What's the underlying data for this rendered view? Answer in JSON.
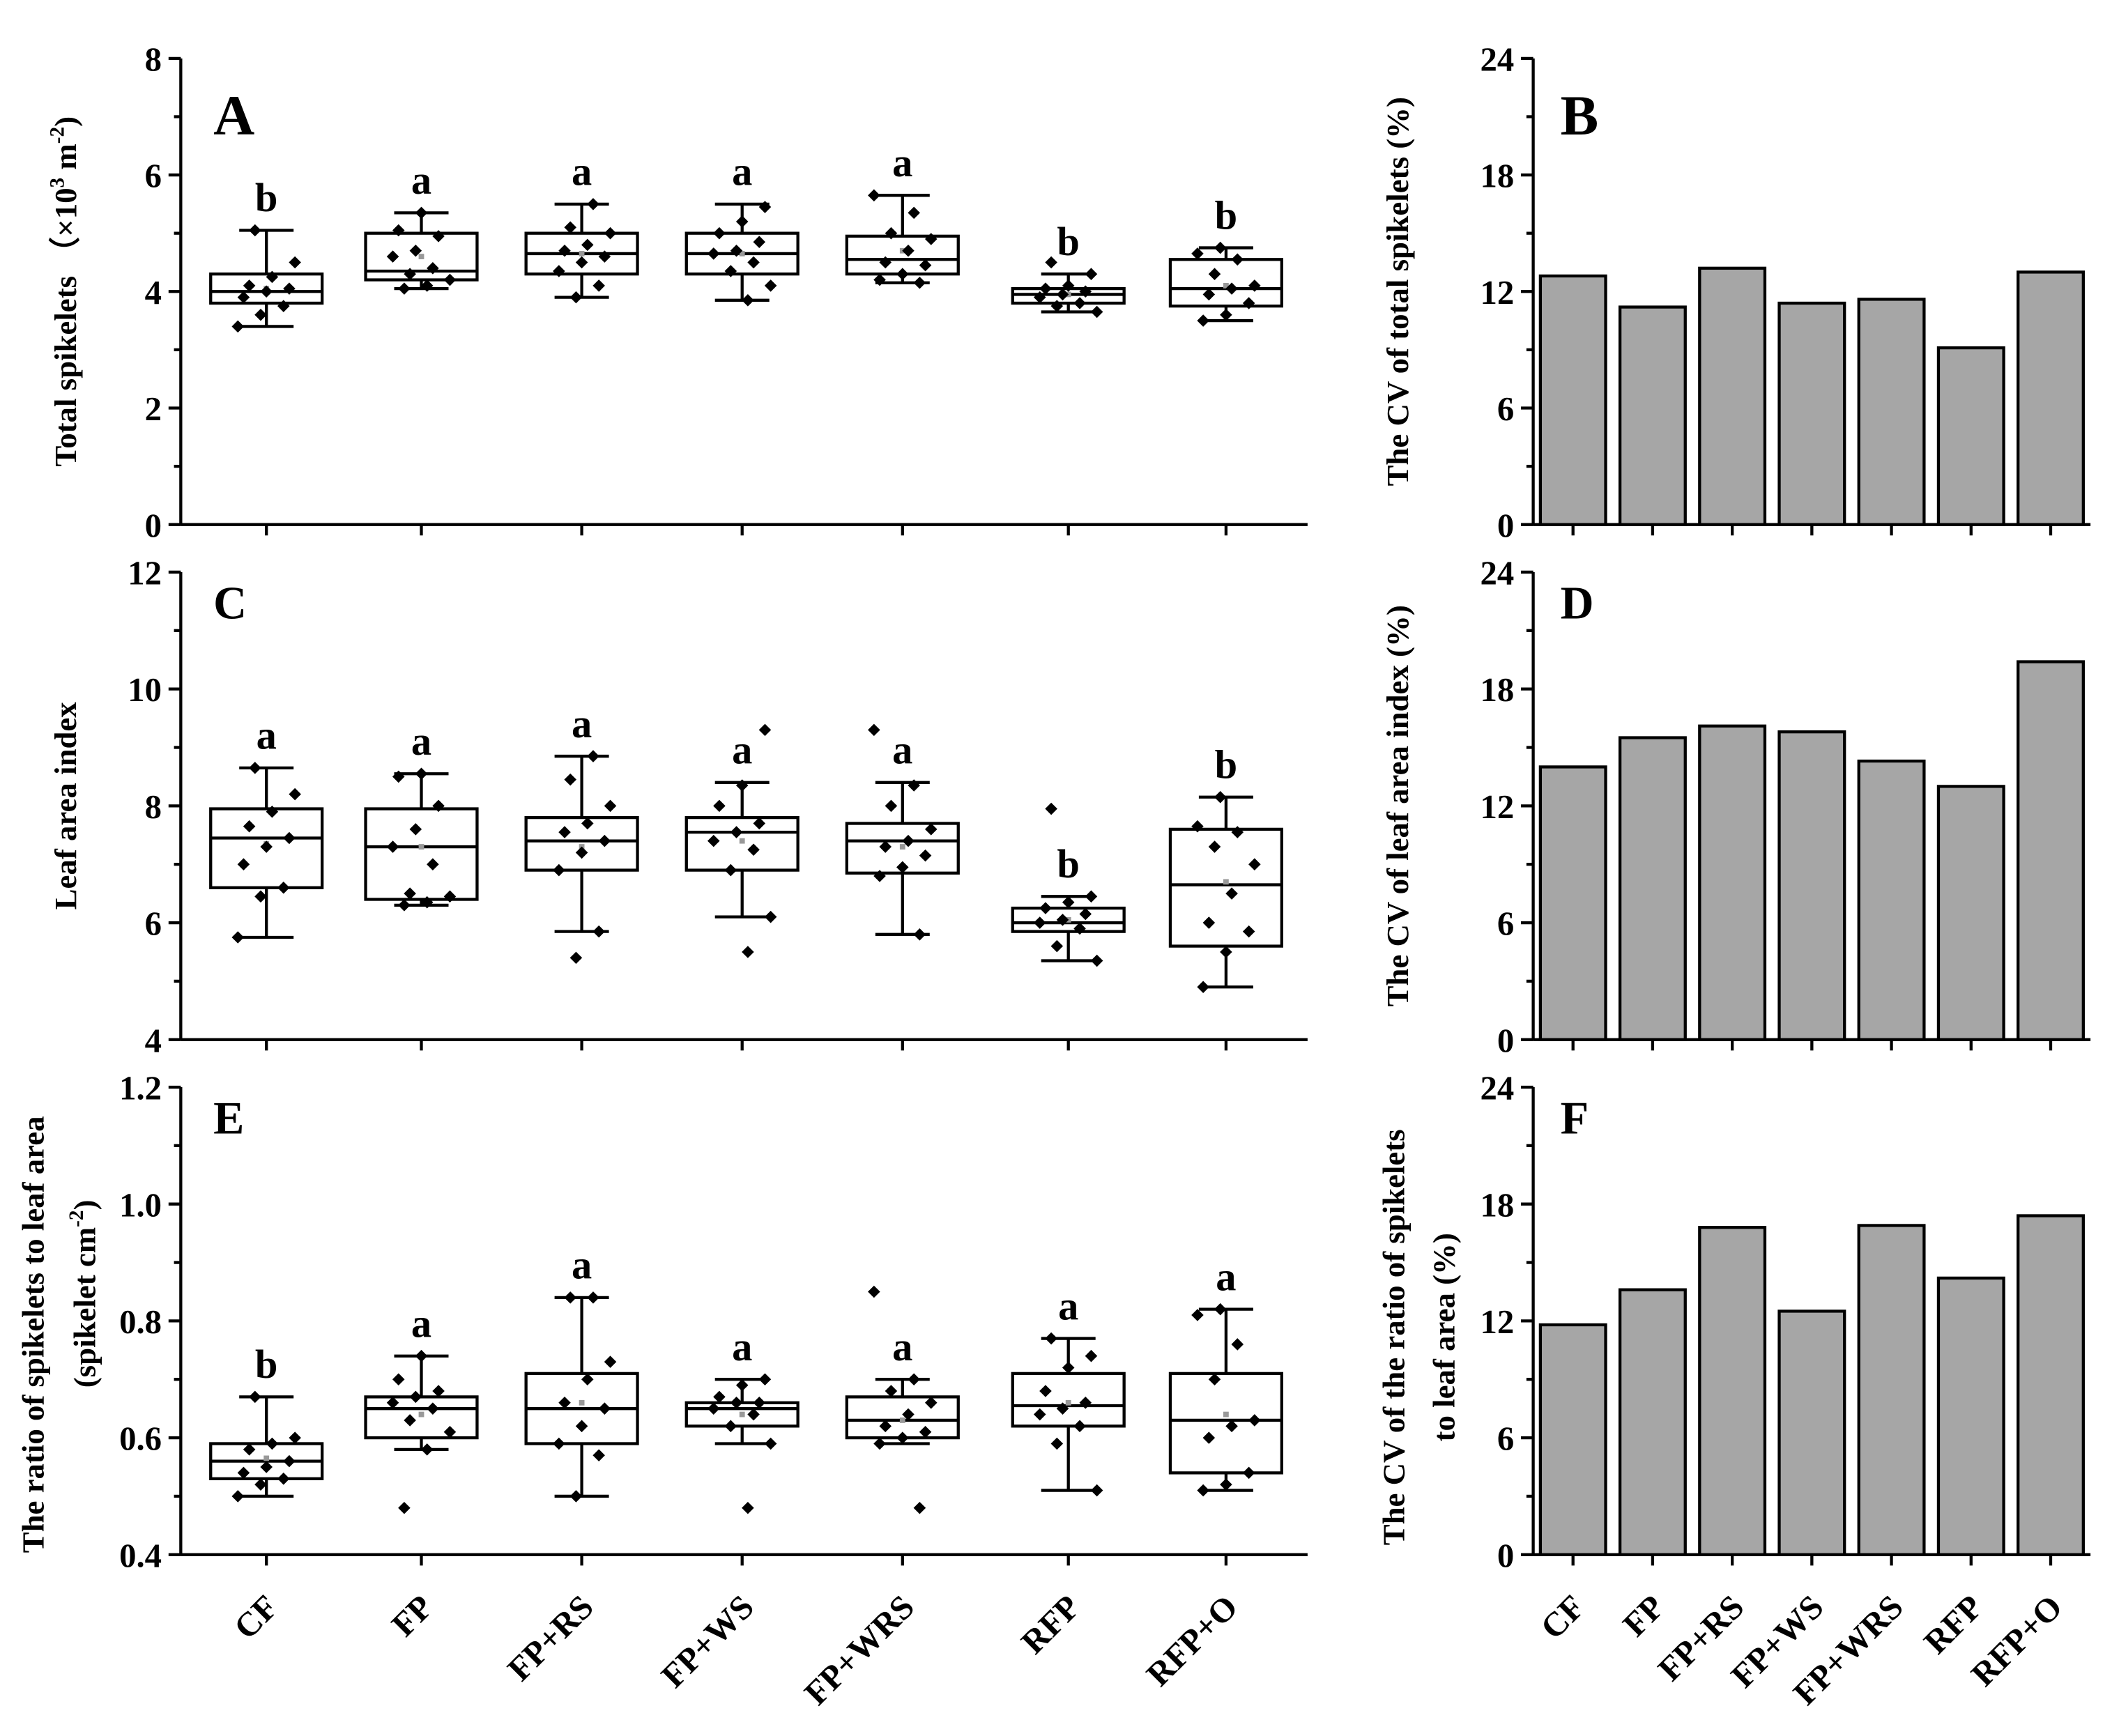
{
  "chart_data": [
    {
      "id": "A",
      "panel_letter": "A",
      "type": "box",
      "ylabel": "Total spikelets （×10",
      "ylabel_sup": "3",
      "ylabel_unit": " m",
      "ylabel_sup2": "-2",
      "ylabel_end": ")",
      "ylim": [
        0,
        8
      ],
      "yticks": [
        0,
        2,
        4,
        6,
        8
      ],
      "ytick_labels": [
        "0",
        "2",
        "4",
        "6",
        "8"
      ],
      "categories": [
        "CF",
        "FP",
        "FP+RS",
        "FP+WS",
        "FP+WRS",
        "RFP",
        "RFP+O"
      ],
      "boxes": [
        {
          "whisker_low": 3.4,
          "q1": 3.8,
          "median": 4.0,
          "q3": 4.3,
          "whisker_high": 5.05,
          "mean": 4.05,
          "points": [
            3.4,
            3.6,
            3.75,
            3.9,
            4.0,
            4.05,
            4.1,
            4.25,
            4.5,
            5.05
          ]
        },
        {
          "whisker_low": 4.05,
          "q1": 4.2,
          "median": 4.35,
          "q3": 5.0,
          "whisker_high": 5.35,
          "mean": 4.6,
          "points": [
            4.05,
            4.1,
            4.2,
            4.3,
            4.4,
            4.6,
            4.7,
            4.95,
            5.05,
            5.35
          ]
        },
        {
          "whisker_low": 3.9,
          "q1": 4.3,
          "median": 4.65,
          "q3": 5.0,
          "whisker_high": 5.5,
          "mean": 4.65,
          "points": [
            3.9,
            4.1,
            4.35,
            4.5,
            4.6,
            4.7,
            4.8,
            5.0,
            5.1,
            5.5
          ]
        },
        {
          "whisker_low": 3.85,
          "q1": 4.3,
          "median": 4.65,
          "q3": 5.0,
          "whisker_high": 5.5,
          "mean": 4.65,
          "points": [
            3.85,
            4.1,
            4.35,
            4.5,
            4.65,
            4.7,
            4.85,
            5.0,
            5.2,
            5.45
          ]
        },
        {
          "whisker_low": 4.15,
          "q1": 4.3,
          "median": 4.55,
          "q3": 4.95,
          "whisker_high": 5.65,
          "mean": 4.7,
          "points": [
            4.15,
            4.2,
            4.3,
            4.45,
            4.5,
            4.7,
            4.9,
            5.0,
            5.35,
            5.65
          ]
        },
        {
          "whisker_low": 3.65,
          "q1": 3.8,
          "median": 3.95,
          "q3": 4.05,
          "whisker_high": 4.3,
          "mean": 3.95,
          "points": [
            3.65,
            3.75,
            3.8,
            3.9,
            3.95,
            4.0,
            4.05,
            4.1,
            4.3,
            4.5
          ]
        },
        {
          "whisker_low": 3.5,
          "q1": 3.75,
          "median": 4.05,
          "q3": 4.55,
          "whisker_high": 4.75,
          "mean": 4.1,
          "points": [
            3.5,
            3.6,
            3.8,
            3.95,
            4.05,
            4.1,
            4.3,
            4.55,
            4.65,
            4.75
          ]
        }
      ],
      "letters": [
        "b",
        "a",
        "a",
        "a",
        "a",
        "b",
        "b"
      ]
    },
    {
      "id": "B",
      "panel_letter": "B",
      "type": "bar",
      "ylabel": "The CV of total spikelets (%)",
      "ylim": [
        0,
        24
      ],
      "yticks": [
        0,
        6,
        12,
        18,
        24
      ],
      "ytick_labels": [
        "0",
        "6",
        "12",
        "18",
        "24"
      ],
      "categories": [
        "CF",
        "FP",
        "FP+RS",
        "FP+WS",
        "FP+WRS",
        "RFP",
        "RFP+O"
      ],
      "values": [
        12.8,
        11.2,
        13.2,
        11.4,
        11.6,
        9.1,
        13.0
      ]
    },
    {
      "id": "C",
      "panel_letter": "C",
      "type": "box",
      "ylabel": "Leaf area index",
      "ylim": [
        4,
        12
      ],
      "yticks": [
        4,
        6,
        8,
        10,
        12
      ],
      "ytick_labels": [
        "4",
        "6",
        "8",
        "10",
        "12"
      ],
      "categories": [
        "CF",
        "FP",
        "FP+RS",
        "FP+WS",
        "FP+WRS",
        "RFP",
        "RFP+O"
      ],
      "boxes": [
        {
          "whisker_low": 5.75,
          "q1": 6.6,
          "median": 7.45,
          "q3": 7.95,
          "whisker_high": 8.65,
          "mean": 7.35,
          "points": [
            5.75,
            6.45,
            6.6,
            7.0,
            7.3,
            7.45,
            7.65,
            7.9,
            8.2,
            8.65
          ]
        },
        {
          "whisker_low": 6.3,
          "q1": 6.4,
          "median": 7.3,
          "q3": 7.95,
          "whisker_high": 8.55,
          "mean": 7.3,
          "points": [
            6.3,
            6.35,
            6.45,
            6.5,
            7.0,
            7.3,
            7.6,
            8.0,
            8.5,
            8.55
          ]
        },
        {
          "whisker_low": 5.85,
          "q1": 6.9,
          "median": 7.4,
          "q3": 7.8,
          "whisker_high": 8.85,
          "mean": 7.3,
          "points": [
            5.4,
            5.85,
            6.9,
            7.2,
            7.4,
            7.55,
            7.7,
            8.0,
            8.45,
            8.85
          ]
        },
        {
          "whisker_low": 6.1,
          "q1": 6.9,
          "median": 7.55,
          "q3": 7.8,
          "whisker_high": 8.4,
          "mean": 7.4,
          "points": [
            5.5,
            6.1,
            6.9,
            7.25,
            7.4,
            7.55,
            7.7,
            8.0,
            8.35,
            9.3
          ]
        },
        {
          "whisker_low": 5.8,
          "q1": 6.85,
          "median": 7.4,
          "q3": 7.7,
          "whisker_high": 8.4,
          "mean": 7.3,
          "points": [
            5.8,
            6.8,
            6.95,
            7.15,
            7.3,
            7.4,
            7.6,
            8.0,
            8.35,
            9.3
          ]
        },
        {
          "whisker_low": 5.35,
          "q1": 5.85,
          "median": 6.0,
          "q3": 6.25,
          "whisker_high": 6.45,
          "mean": 6.05,
          "points": [
            5.35,
            5.6,
            5.9,
            6.0,
            6.05,
            6.15,
            6.25,
            6.35,
            6.45,
            7.95
          ]
        },
        {
          "whisker_low": 4.9,
          "q1": 5.6,
          "median": 6.65,
          "q3": 7.6,
          "whisker_high": 8.15,
          "mean": 6.7,
          "points": [
            4.9,
            5.5,
            5.85,
            6.0,
            6.5,
            7.0,
            7.3,
            7.55,
            7.65,
            8.15
          ]
        }
      ],
      "letters": [
        "a",
        "a",
        "a",
        "a",
        "a",
        "b",
        "b"
      ]
    },
    {
      "id": "D",
      "panel_letter": "D",
      "type": "bar",
      "ylabel": "The CV of leaf area index (%)",
      "ylim": [
        0,
        24
      ],
      "yticks": [
        0,
        6,
        12,
        18,
        24
      ],
      "ytick_labels": [
        "0",
        "6",
        "12",
        "18",
        "24"
      ],
      "categories": [
        "CF",
        "FP",
        "FP+RS",
        "FP+WS",
        "FP+WRS",
        "RFP",
        "RFP+O"
      ],
      "values": [
        14.0,
        15.5,
        16.1,
        15.8,
        14.3,
        13.0,
        19.4
      ]
    },
    {
      "id": "E",
      "panel_letter": "E",
      "type": "box",
      "ylabel": "The ratio of spikelets to leaf area",
      "ylabel2": "(spikelet cm",
      "ylabel2_sup": "-2",
      "ylabel2_end": ")",
      "ylim": [
        0.4,
        1.2
      ],
      "yticks": [
        0.4,
        0.6,
        0.8,
        1.0,
        1.2
      ],
      "ytick_labels": [
        "0.4",
        "0.6",
        "0.8",
        "1.0",
        "1.2"
      ],
      "categories": [
        "CF",
        "FP",
        "FP+RS",
        "FP+WS",
        "FP+WRS",
        "RFP",
        "RFP+O"
      ],
      "boxes": [
        {
          "whisker_low": 0.5,
          "q1": 0.53,
          "median": 0.56,
          "q3": 0.59,
          "whisker_high": 0.67,
          "mean": 0.565,
          "points": [
            0.5,
            0.52,
            0.53,
            0.54,
            0.55,
            0.56,
            0.58,
            0.59,
            0.6,
            0.67
          ]
        },
        {
          "whisker_low": 0.58,
          "q1": 0.6,
          "median": 0.65,
          "q3": 0.67,
          "whisker_high": 0.74,
          "mean": 0.64,
          "points": [
            0.48,
            0.58,
            0.61,
            0.63,
            0.65,
            0.66,
            0.67,
            0.68,
            0.7,
            0.74
          ]
        },
        {
          "whisker_low": 0.5,
          "q1": 0.59,
          "median": 0.65,
          "q3": 0.71,
          "whisker_high": 0.84,
          "mean": 0.66,
          "points": [
            0.5,
            0.57,
            0.59,
            0.62,
            0.65,
            0.66,
            0.7,
            0.73,
            0.84,
            0.84
          ]
        },
        {
          "whisker_low": 0.59,
          "q1": 0.62,
          "median": 0.65,
          "q3": 0.66,
          "whisker_high": 0.7,
          "mean": 0.64,
          "points": [
            0.48,
            0.59,
            0.62,
            0.64,
            0.65,
            0.66,
            0.66,
            0.67,
            0.69,
            0.7
          ]
        },
        {
          "whisker_low": 0.59,
          "q1": 0.6,
          "median": 0.63,
          "q3": 0.67,
          "whisker_high": 0.7,
          "mean": 0.63,
          "points": [
            0.48,
            0.59,
            0.6,
            0.61,
            0.62,
            0.64,
            0.66,
            0.68,
            0.7,
            0.85
          ]
        },
        {
          "whisker_low": 0.51,
          "q1": 0.62,
          "median": 0.655,
          "q3": 0.71,
          "whisker_high": 0.77,
          "mean": 0.66,
          "points": [
            0.51,
            0.59,
            0.62,
            0.64,
            0.65,
            0.66,
            0.68,
            0.72,
            0.74,
            0.77
          ]
        },
        {
          "whisker_low": 0.51,
          "q1": 0.54,
          "median": 0.63,
          "q3": 0.71,
          "whisker_high": 0.82,
          "mean": 0.64,
          "points": [
            0.51,
            0.52,
            0.54,
            0.6,
            0.62,
            0.63,
            0.7,
            0.76,
            0.81,
            0.82
          ]
        }
      ],
      "letters": [
        "b",
        "a",
        "a",
        "a",
        "a",
        "a",
        "a"
      ]
    },
    {
      "id": "F",
      "panel_letter": "F",
      "type": "bar",
      "ylabel": "The CV of the ratio of spikelets",
      "ylabel2": "to leaf area (%)",
      "ylim": [
        0,
        24
      ],
      "yticks": [
        0,
        6,
        12,
        18,
        24
      ],
      "ytick_labels": [
        "0",
        "6",
        "12",
        "18",
        "24"
      ],
      "categories": [
        "CF",
        "FP",
        "FP+RS",
        "FP+WS",
        "FP+WRS",
        "RFP",
        "RFP+O"
      ],
      "values": [
        11.8,
        13.6,
        16.8,
        12.5,
        16.9,
        14.2,
        17.4
      ]
    }
  ]
}
